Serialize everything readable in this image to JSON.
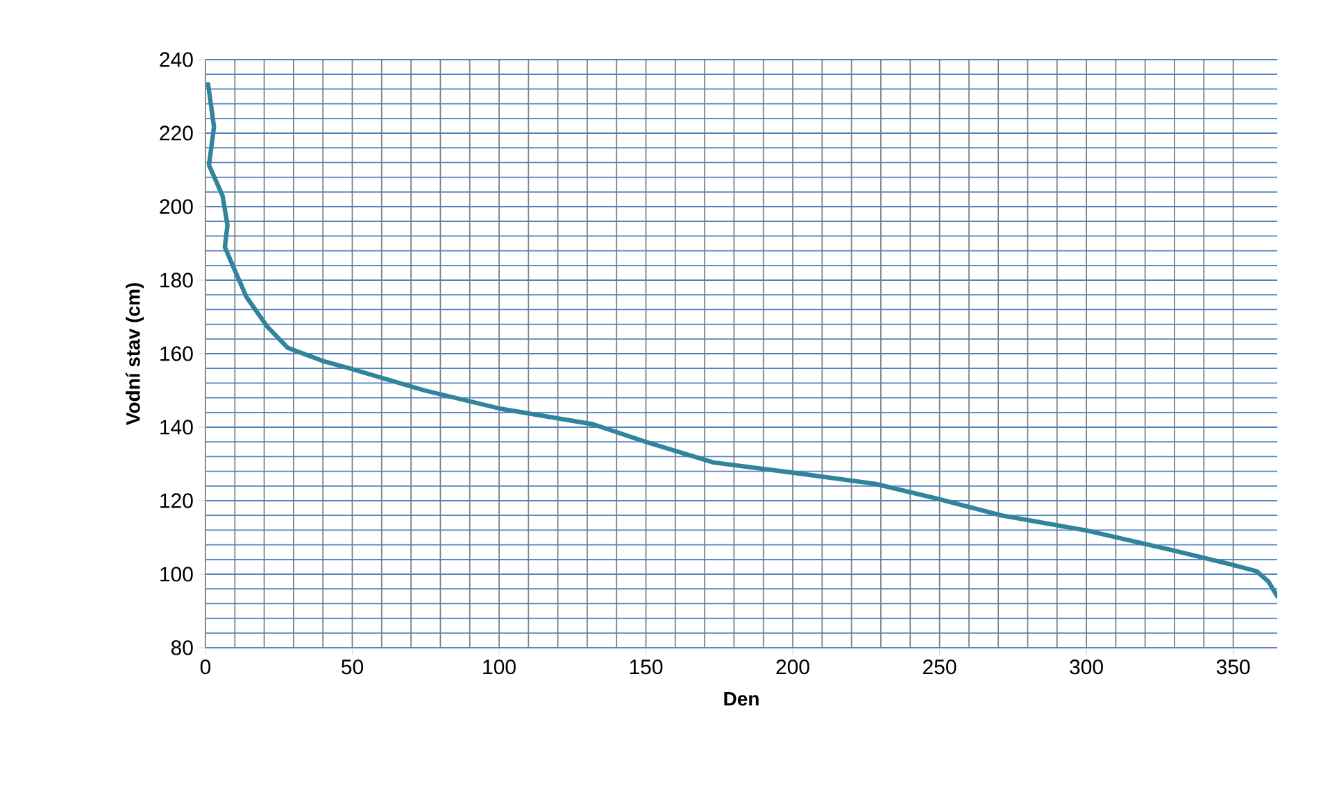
{
  "chart_data": {
    "type": "line",
    "xlabel": "Den",
    "ylabel": "Vodní stav (cm)",
    "xlim": [
      0,
      365
    ],
    "ylim": [
      80,
      240
    ],
    "xticks": [
      0,
      50,
      100,
      150,
      200,
      250,
      300,
      350
    ],
    "yticks": [
      80,
      100,
      120,
      140,
      160,
      180,
      200,
      220,
      240
    ],
    "grid": true,
    "line_style": "solid",
    "marker": "none",
    "series": [
      {
        "color": "#31849b",
        "x": [
          0.9,
          2.9,
          1.2,
          5.8,
          7.5,
          6.6,
          9.5,
          13.9,
          21,
          28,
          40,
          50,
          74.6,
          100.6,
          132,
          150,
          173,
          200.3,
          228,
          249.5,
          271,
          300,
          329,
          349,
          358,
          362,
          365
        ],
        "values": [
          233.3,
          221.7,
          211.3,
          203,
          195,
          189,
          183.6,
          175.5,
          167.4,
          161.6,
          158,
          155.8,
          150,
          145,
          140.8,
          136,
          130.4,
          127.6,
          124.6,
          120.5,
          116,
          111.9,
          106.6,
          102.7,
          100.8,
          98,
          94
        ]
      }
    ]
  }
}
